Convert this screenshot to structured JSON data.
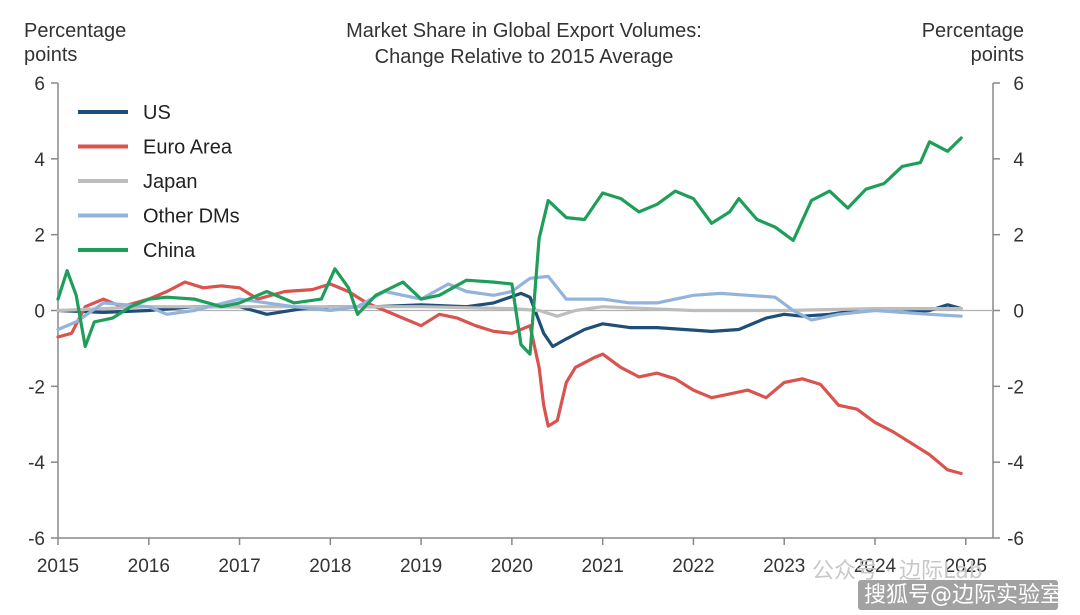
{
  "chart_data": {
    "type": "line",
    "title": "Market Share in Global Export Volumes:",
    "subtitle": "Change Relative to 2015 Average",
    "ylabel_left": "Percentage points",
    "ylabel_right": "Percentage points",
    "xlim": [
      2015,
      2025.3
    ],
    "ylim": [
      -6,
      6
    ],
    "x_ticks": [
      "2015",
      "2016",
      "2017",
      "2018",
      "2019",
      "2020",
      "2021",
      "2022",
      "2023",
      "2024",
      "2025"
    ],
    "y_ticks": [
      "6",
      "4",
      "2",
      "0",
      "-2",
      "-4",
      "-6"
    ],
    "legend_position": "top-left",
    "series": [
      {
        "name": "US",
        "color": "#1f4e79",
        "points": [
          [
            2015,
            0.0
          ],
          [
            2015.5,
            -0.05
          ],
          [
            2016,
            0.0
          ],
          [
            2016.5,
            0.1
          ],
          [
            2017,
            0.1
          ],
          [
            2017.3,
            -0.1
          ],
          [
            2017.7,
            0.05
          ],
          [
            2018,
            0.1
          ],
          [
            2018.5,
            0.1
          ],
          [
            2019,
            0.15
          ],
          [
            2019.5,
            0.1
          ],
          [
            2019.8,
            0.2
          ],
          [
            2020.1,
            0.45
          ],
          [
            2020.2,
            0.35
          ],
          [
            2020.35,
            -0.6
          ],
          [
            2020.45,
            -0.95
          ],
          [
            2020.6,
            -0.75
          ],
          [
            2020.8,
            -0.5
          ],
          [
            2021,
            -0.35
          ],
          [
            2021.3,
            -0.45
          ],
          [
            2021.6,
            -0.45
          ],
          [
            2021.9,
            -0.5
          ],
          [
            2022.2,
            -0.55
          ],
          [
            2022.5,
            -0.5
          ],
          [
            2022.8,
            -0.2
          ],
          [
            2023,
            -0.1
          ],
          [
            2023.2,
            -0.15
          ],
          [
            2023.5,
            -0.1
          ],
          [
            2023.8,
            0.0
          ],
          [
            2024,
            0.05
          ],
          [
            2024.3,
            -0.05
          ],
          [
            2024.6,
            0.0
          ],
          [
            2024.8,
            0.15
          ],
          [
            2024.95,
            0.05
          ]
        ]
      },
      {
        "name": "Euro Area",
        "color": "#d9534f",
        "points": [
          [
            2015,
            -0.7
          ],
          [
            2015.15,
            -0.6
          ],
          [
            2015.3,
            0.1
          ],
          [
            2015.5,
            0.3
          ],
          [
            2015.7,
            0.1
          ],
          [
            2016,
            0.3
          ],
          [
            2016.2,
            0.5
          ],
          [
            2016.4,
            0.75
          ],
          [
            2016.6,
            0.6
          ],
          [
            2016.8,
            0.65
          ],
          [
            2017,
            0.6
          ],
          [
            2017.2,
            0.3
          ],
          [
            2017.5,
            0.5
          ],
          [
            2017.8,
            0.55
          ],
          [
            2018,
            0.7
          ],
          [
            2018.2,
            0.5
          ],
          [
            2018.4,
            0.2
          ],
          [
            2018.6,
            0.0
          ],
          [
            2018.8,
            -0.2
          ],
          [
            2019,
            -0.4
          ],
          [
            2019.2,
            -0.1
          ],
          [
            2019.4,
            -0.2
          ],
          [
            2019.6,
            -0.4
          ],
          [
            2019.8,
            -0.55
          ],
          [
            2020,
            -0.6
          ],
          [
            2020.2,
            -0.4
          ],
          [
            2020.3,
            -1.5
          ],
          [
            2020.35,
            -2.5
          ],
          [
            2020.4,
            -3.05
          ],
          [
            2020.5,
            -2.9
          ],
          [
            2020.6,
            -1.9
          ],
          [
            2020.7,
            -1.5
          ],
          [
            2020.9,
            -1.25
          ],
          [
            2021,
            -1.15
          ],
          [
            2021.2,
            -1.5
          ],
          [
            2021.4,
            -1.75
          ],
          [
            2021.6,
            -1.65
          ],
          [
            2021.8,
            -1.8
          ],
          [
            2022,
            -2.1
          ],
          [
            2022.2,
            -2.3
          ],
          [
            2022.4,
            -2.2
          ],
          [
            2022.6,
            -2.1
          ],
          [
            2022.8,
            -2.3
          ],
          [
            2023,
            -1.9
          ],
          [
            2023.2,
            -1.8
          ],
          [
            2023.4,
            -1.95
          ],
          [
            2023.6,
            -2.5
          ],
          [
            2023.8,
            -2.6
          ],
          [
            2024,
            -2.95
          ],
          [
            2024.2,
            -3.2
          ],
          [
            2024.4,
            -3.5
          ],
          [
            2024.6,
            -3.8
          ],
          [
            2024.8,
            -4.2
          ],
          [
            2024.95,
            -4.3
          ]
        ]
      },
      {
        "name": "Japan",
        "color": "#bdbdbd",
        "points": [
          [
            2015,
            0.0
          ],
          [
            2016,
            0.1
          ],
          [
            2017,
            0.1
          ],
          [
            2018,
            0.1
          ],
          [
            2019,
            0.1
          ],
          [
            2020,
            0.05
          ],
          [
            2020.3,
            0.0
          ],
          [
            2020.5,
            -0.15
          ],
          [
            2020.7,
            0.0
          ],
          [
            2021,
            0.1
          ],
          [
            2022,
            0.0
          ],
          [
            2023,
            0.0
          ],
          [
            2024,
            0.05
          ],
          [
            2024.95,
            0.05
          ]
        ]
      },
      {
        "name": "Other DMs",
        "color": "#92b4dc",
        "points": [
          [
            2015,
            -0.5
          ],
          [
            2015.2,
            -0.3
          ],
          [
            2015.5,
            0.2
          ],
          [
            2016,
            0.1
          ],
          [
            2016.2,
            -0.1
          ],
          [
            2016.5,
            0.0
          ],
          [
            2017,
            0.3
          ],
          [
            2017.3,
            0.2
          ],
          [
            2017.6,
            0.1
          ],
          [
            2018,
            0.0
          ],
          [
            2018.3,
            0.1
          ],
          [
            2018.6,
            0.5
          ],
          [
            2019,
            0.3
          ],
          [
            2019.3,
            0.7
          ],
          [
            2019.5,
            0.5
          ],
          [
            2019.8,
            0.4
          ],
          [
            2020,
            0.5
          ],
          [
            2020.2,
            0.85
          ],
          [
            2020.4,
            0.9
          ],
          [
            2020.6,
            0.3
          ],
          [
            2021,
            0.3
          ],
          [
            2021.3,
            0.2
          ],
          [
            2021.6,
            0.2
          ],
          [
            2022,
            0.4
          ],
          [
            2022.3,
            0.45
          ],
          [
            2022.6,
            0.4
          ],
          [
            2022.9,
            0.35
          ],
          [
            2023.1,
            0.0
          ],
          [
            2023.3,
            -0.25
          ],
          [
            2023.6,
            -0.1
          ],
          [
            2024,
            0.0
          ],
          [
            2024.3,
            -0.05
          ],
          [
            2024.6,
            -0.1
          ],
          [
            2024.95,
            -0.15
          ]
        ]
      },
      {
        "name": "China",
        "color": "#1f9e5a",
        "points": [
          [
            2015,
            0.3
          ],
          [
            2015.1,
            1.05
          ],
          [
            2015.2,
            0.4
          ],
          [
            2015.3,
            -0.95
          ],
          [
            2015.4,
            -0.3
          ],
          [
            2015.6,
            -0.2
          ],
          [
            2015.8,
            0.1
          ],
          [
            2016,
            0.3
          ],
          [
            2016.2,
            0.35
          ],
          [
            2016.5,
            0.3
          ],
          [
            2016.8,
            0.1
          ],
          [
            2017,
            0.2
          ],
          [
            2017.3,
            0.5
          ],
          [
            2017.6,
            0.2
          ],
          [
            2017.9,
            0.3
          ],
          [
            2018.05,
            1.1
          ],
          [
            2018.2,
            0.6
          ],
          [
            2018.3,
            -0.1
          ],
          [
            2018.5,
            0.4
          ],
          [
            2018.8,
            0.75
          ],
          [
            2019,
            0.3
          ],
          [
            2019.2,
            0.4
          ],
          [
            2019.5,
            0.8
          ],
          [
            2019.8,
            0.75
          ],
          [
            2020,
            0.7
          ],
          [
            2020.1,
            -0.9
          ],
          [
            2020.2,
            -1.15
          ],
          [
            2020.3,
            1.9
          ],
          [
            2020.4,
            2.9
          ],
          [
            2020.6,
            2.45
          ],
          [
            2020.8,
            2.4
          ],
          [
            2021,
            3.1
          ],
          [
            2021.2,
            2.95
          ],
          [
            2021.4,
            2.6
          ],
          [
            2021.6,
            2.8
          ],
          [
            2021.8,
            3.15
          ],
          [
            2022,
            2.95
          ],
          [
            2022.2,
            2.3
          ],
          [
            2022.4,
            2.6
          ],
          [
            2022.5,
            2.95
          ],
          [
            2022.7,
            2.4
          ],
          [
            2022.9,
            2.2
          ],
          [
            2023.1,
            1.85
          ],
          [
            2023.3,
            2.9
          ],
          [
            2023.5,
            3.15
          ],
          [
            2023.7,
            2.7
          ],
          [
            2023.9,
            3.2
          ],
          [
            2024.1,
            3.35
          ],
          [
            2024.3,
            3.8
          ],
          [
            2024.5,
            3.9
          ],
          [
            2024.6,
            4.45
          ],
          [
            2024.8,
            4.2
          ],
          [
            2024.95,
            4.55
          ]
        ]
      }
    ]
  },
  "watermark": {
    "text1": "公众号 · 边际Lab",
    "text2": "搜狐号@边际实验室"
  }
}
